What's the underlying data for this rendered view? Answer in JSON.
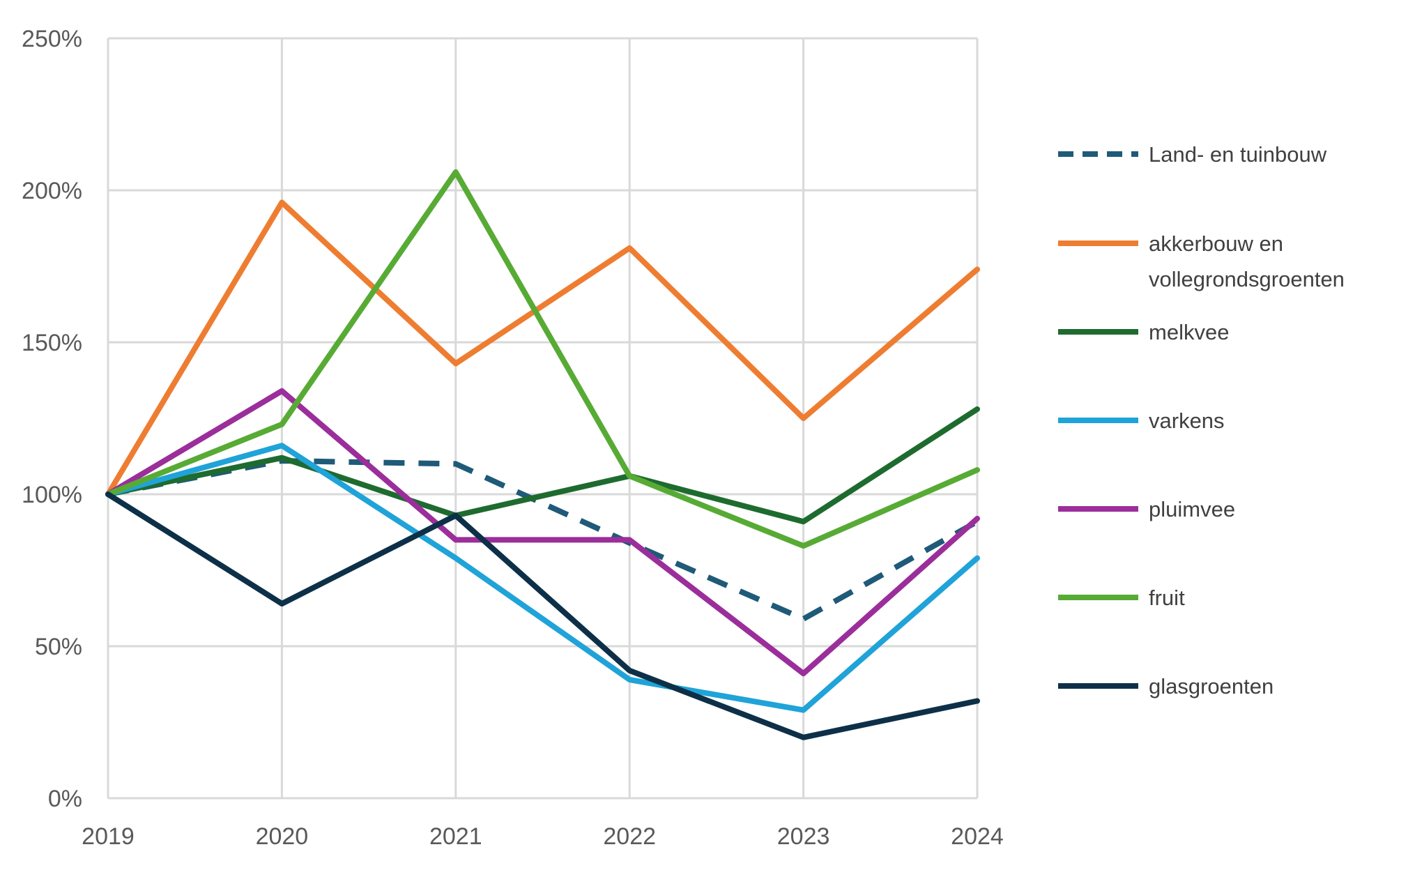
{
  "chart_data": {
    "type": "line",
    "title": "",
    "xlabel": "",
    "ylabel": "",
    "x": [
      "2019",
      "2020",
      "2021",
      "2022",
      "2023",
      "2024"
    ],
    "ylim": [
      0,
      250
    ],
    "yticks": [
      "0%",
      "50%",
      "100%",
      "150%",
      "200%",
      "250%"
    ],
    "grid": true,
    "legend_position": "right",
    "series": [
      {
        "name": "Land- en tuinbouw",
        "lines": [
          "Land- en tuinbouw"
        ],
        "color": "#1f5a78",
        "dashed": true,
        "values": [
          100,
          111,
          110,
          84,
          59,
          91
        ]
      },
      {
        "name": "akkerbouw en vollegrondsgroenten",
        "lines": [
          "akkerbouw en",
          "vollegrondsgroenten"
        ],
        "color": "#ee7d31",
        "dashed": false,
        "values": [
          100,
          196,
          143,
          181,
          125,
          174
        ]
      },
      {
        "name": "melkvee",
        "lines": [
          "melkvee"
        ],
        "color": "#1e6b2f",
        "dashed": false,
        "values": [
          100,
          112,
          93,
          106,
          91,
          128
        ]
      },
      {
        "name": "varkens",
        "lines": [
          "varkens"
        ],
        "color": "#1fa3d8",
        "dashed": false,
        "values": [
          100,
          116,
          79,
          39,
          29,
          79
        ]
      },
      {
        "name": "pluimvee",
        "lines": [
          "pluimvee"
        ],
        "color": "#9b2e9b",
        "dashed": false,
        "values": [
          100,
          134,
          85,
          85,
          41,
          92
        ]
      },
      {
        "name": "fruit",
        "lines": [
          "fruit"
        ],
        "color": "#57ab35",
        "dashed": false,
        "values": [
          100,
          123,
          206,
          106,
          83,
          108
        ]
      },
      {
        "name": "glasgroenten",
        "lines": [
          "glasgroenten"
        ],
        "color": "#0d3048",
        "dashed": false,
        "values": [
          100,
          64,
          93,
          42,
          20,
          32
        ]
      }
    ]
  }
}
